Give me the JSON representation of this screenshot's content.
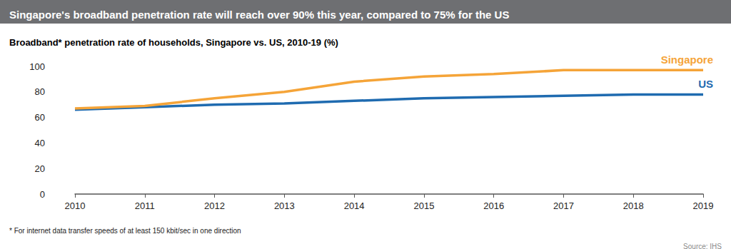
{
  "chart_data": {
    "type": "line",
    "title": "Singapore's broadband penetration rate will reach over 90% this year, compared to 75% for the US",
    "subtitle": "Broadband* penetration rate of households, Singapore vs. US, 2010-19 (%)",
    "annotations": [
      "* For internet data transfer speeds of at least 150 kbit/sec in one direction",
      "Source: IHS"
    ],
    "categories": [
      "2010",
      "2011",
      "2012",
      "2013",
      "2014",
      "2015",
      "2016",
      "2017",
      "2018",
      "2019"
    ],
    "series": [
      {
        "name": "Singapore",
        "color": "#f5a438",
        "values": [
          67,
          69,
          75,
          80,
          88,
          92,
          94,
          97,
          97,
          97
        ]
      },
      {
        "name": "US",
        "color": "#1f6bb0",
        "values": [
          66,
          68,
          70,
          71,
          73,
          75,
          76,
          77,
          78,
          78
        ]
      }
    ],
    "ylim": [
      0,
      100
    ],
    "yticks": [
      0,
      20,
      40,
      60,
      80,
      100
    ],
    "grid": false
  }
}
